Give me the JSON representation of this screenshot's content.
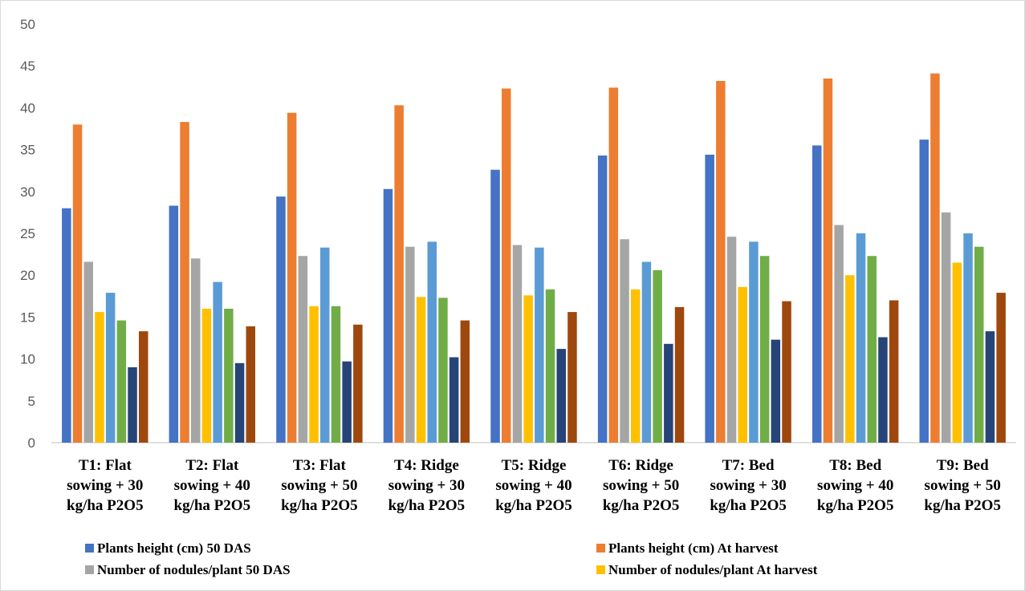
{
  "chart_data": {
    "type": "bar",
    "categories": [
      [
        "T1: Flat",
        "sowing + 30",
        "kg/ha P2O5"
      ],
      [
        "T2: Flat",
        "sowing + 40",
        "kg/ha P2O5"
      ],
      [
        "T3: Flat",
        "sowing + 50",
        "kg/ha P2O5"
      ],
      [
        "T4: Ridge",
        "sowing + 30",
        "kg/ha P2O5"
      ],
      [
        "T5: Ridge",
        "sowing + 40",
        "kg/ha P2O5"
      ],
      [
        "T6: Ridge",
        "sowing + 50",
        "kg/ha P2O5"
      ],
      [
        "T7: Bed",
        "sowing + 30",
        "kg/ha P2O5"
      ],
      [
        "T8: Bed",
        "sowing + 40",
        "kg/ha P2O5"
      ],
      [
        "T9: Bed",
        "sowing + 50",
        "kg/ha P2O5"
      ]
    ],
    "series": [
      {
        "name": "Plants height (cm) 50 DAS",
        "color": "#4472C4",
        "values": [
          28.0,
          28.3,
          29.4,
          30.3,
          32.6,
          34.3,
          34.4,
          35.5,
          36.2
        ]
      },
      {
        "name": "Plants height (cm) At harvest",
        "color": "#ED7D31",
        "values": [
          38.0,
          38.3,
          39.4,
          40.3,
          42.3,
          42.4,
          43.2,
          43.5,
          44.1
        ]
      },
      {
        "name": "Number of nodules/plant 50 DAS",
        "color": "#A5A5A5",
        "values": [
          21.6,
          22.0,
          22.3,
          23.4,
          23.6,
          24.3,
          24.6,
          26.0,
          27.5
        ]
      },
      {
        "name": "Number of nodules/plant At harvest",
        "color": "#FFC000",
        "values": [
          15.6,
          16.0,
          16.3,
          17.4,
          17.6,
          18.3,
          18.6,
          20.0,
          21.5
        ]
      },
      {
        "color": "#5B9BD5",
        "values": [
          17.9,
          19.2,
          23.3,
          24.0,
          23.3,
          21.6,
          24.0,
          25.0,
          25.0
        ]
      },
      {
        "color": "#70AD47",
        "values": [
          14.6,
          16.0,
          16.3,
          17.3,
          18.3,
          20.6,
          22.3,
          22.3,
          23.4
        ]
      },
      {
        "color": "#264478",
        "values": [
          9.0,
          9.5,
          9.7,
          10.2,
          11.2,
          11.8,
          12.3,
          12.6,
          13.3
        ]
      },
      {
        "color": "#9E480E",
        "values": [
          13.3,
          13.9,
          14.1,
          14.6,
          15.6,
          16.2,
          16.9,
          17.0,
          17.9
        ]
      }
    ],
    "ylim": [
      0,
      50
    ],
    "yticks": [
      0,
      5,
      10,
      15,
      20,
      25,
      30,
      35,
      40,
      45,
      50
    ],
    "grid": false,
    "legend_position": "bottom"
  }
}
